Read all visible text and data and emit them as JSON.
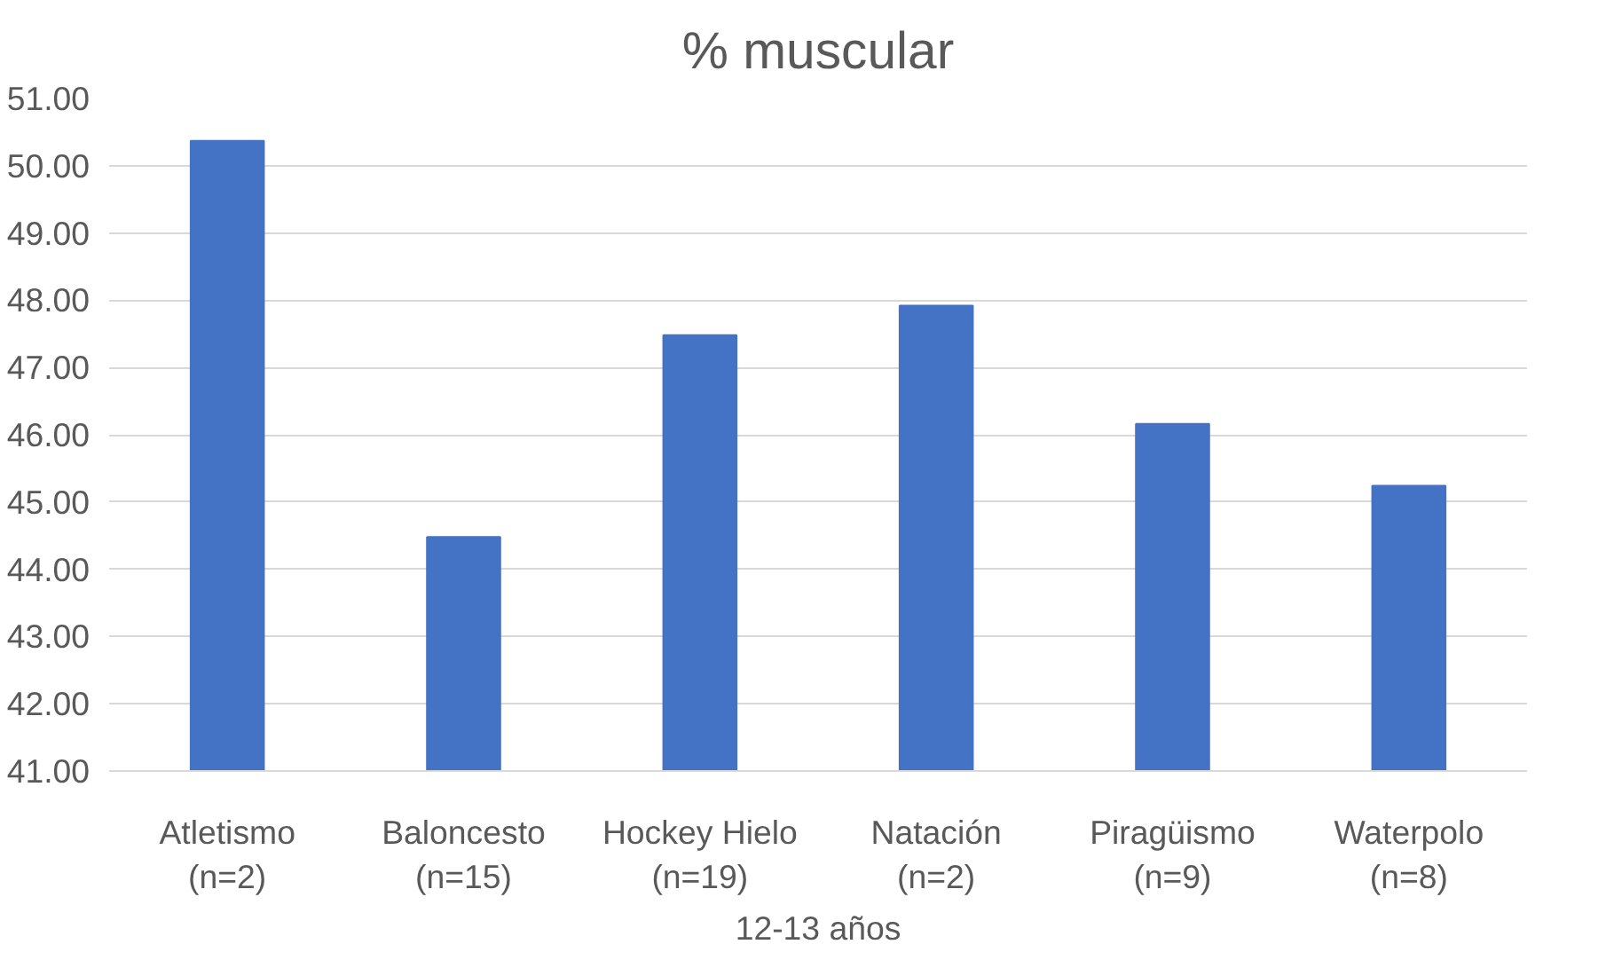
{
  "chart_data": {
    "type": "bar",
    "title": "% muscular",
    "xlabel": "12-13 años",
    "categories": [
      "Atletismo\n(n=2)",
      "Baloncesto\n(n=15)",
      "Hockey Hielo\n(n=19)",
      "Natación\n(n=2)",
      "Piragüismo\n(n=9)",
      "Waterpolo\n(n=8)"
    ],
    "values": [
      50.37,
      44.48,
      47.48,
      47.92,
      46.16,
      45.24
    ],
    "color": "#4472c4",
    "ylim": [
      41,
      51
    ],
    "yticks": [
      {
        "value": 41,
        "label": "41.00"
      },
      {
        "value": 42,
        "label": "42.00"
      },
      {
        "value": 43,
        "label": "43.00"
      },
      {
        "value": 44,
        "label": "44.00"
      },
      {
        "value": 45,
        "label": "45.00"
      },
      {
        "value": 46,
        "label": "46.00"
      },
      {
        "value": 47,
        "label": "47.00"
      },
      {
        "value": 48,
        "label": "48.00"
      },
      {
        "value": 49,
        "label": "49.00"
      },
      {
        "value": 50,
        "label": "50.00"
      },
      {
        "value": 51,
        "label": "51.00"
      }
    ],
    "grid": "y"
  }
}
